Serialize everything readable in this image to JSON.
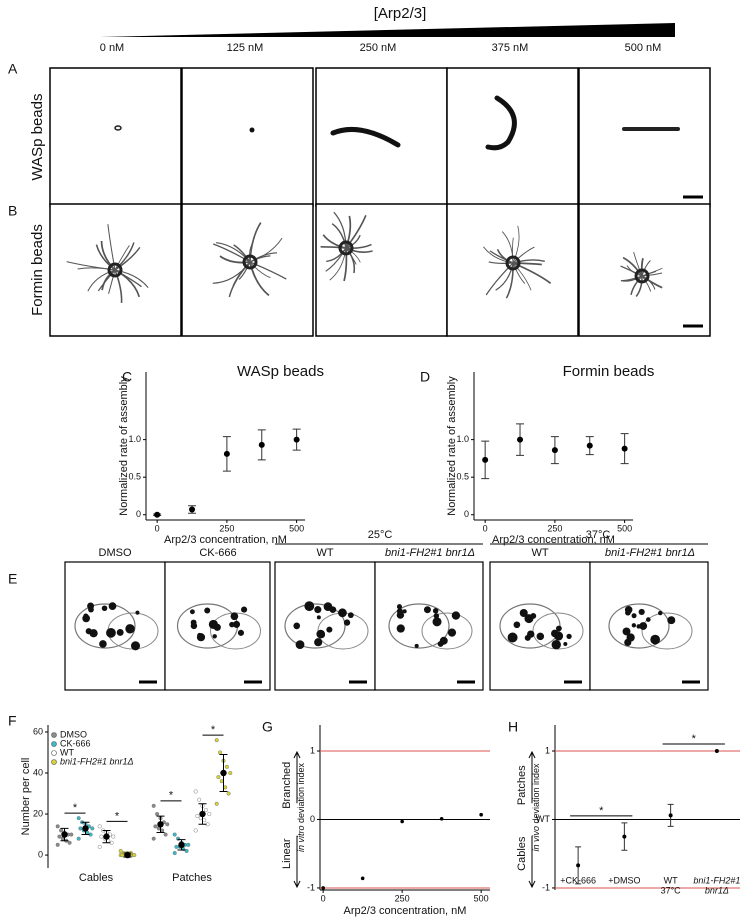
{
  "header": {
    "title": "[Arp2/3]",
    "concentrations": [
      "0 nM",
      "125 nM",
      "250 nM",
      "375 nM",
      "500 nM"
    ]
  },
  "panel_labels": [
    "A",
    "B",
    "C",
    "D",
    "E",
    "F",
    "G",
    "H"
  ],
  "row_labels": [
    "WASp beads",
    "Formin beads"
  ],
  "panel_e": {
    "groups": [
      "25°C",
      "37°C"
    ],
    "conditions": [
      "DMSO",
      "CK-666",
      "WT",
      "bni1-FH2#1  bnr1Δ",
      "WT",
      "bni1-FH2#1  bnr1Δ"
    ]
  },
  "chart_data": [
    {
      "type": "errorbar",
      "title": "WASp beads",
      "x": [
        0,
        125,
        250,
        375,
        500
      ],
      "values": [
        0,
        0.07,
        0.81,
        0.93,
        1
      ],
      "errors": [
        0.01,
        0.05,
        0.23,
        0.2,
        0.14
      ],
      "xlim": [
        -40,
        530
      ],
      "ylim": [
        -0.07,
        1.9
      ],
      "xticks": [
        0,
        250,
        500
      ],
      "yticks": [
        0,
        0.5,
        {
          "value": 1,
          "label": "1.0"
        }
      ],
      "x_label": "Arp2/3 concentration, nM",
      "y_label": "Normalized rate of assembly",
      "color": "#000000"
    },
    {
      "type": "errorbar",
      "title": "Formin beads",
      "x": [
        0,
        125,
        250,
        375,
        500
      ],
      "values": [
        0.73,
        1,
        0.86,
        0.92,
        0.88
      ],
      "errors": [
        0.25,
        0.21,
        0.18,
        0.12,
        0.2
      ],
      "xlim": [
        -40,
        530
      ],
      "ylim": [
        -0.07,
        1.9
      ],
      "xticks": [
        0,
        250,
        500
      ],
      "yticks": [
        0,
        0.5,
        {
          "value": 1,
          "label": "1.0"
        }
      ],
      "x_label": "Arp2/3 concentration, nM",
      "y_label": "Normalized rate of assembly",
      "color": "#000000"
    },
    {
      "type": "swarm",
      "categories": [
        "Cables",
        "Patches"
      ],
      "ylim": [
        -6.3,
        63.4
      ],
      "yticks": [
        0,
        20,
        40,
        60
      ],
      "y_label": "Number per cell",
      "series": [
        {
          "name": "DMSO",
          "color": "#8c8c8c",
          "values": [
            10,
            15
          ],
          "errors": [
            3,
            4
          ],
          "points": [
            [
              5,
              6,
              7,
              8,
              9,
              10,
              10,
              11,
              12,
              14
            ],
            [
              8,
              10,
              12,
              13,
              14,
              15,
              16,
              18,
              20,
              24
            ]
          ]
        },
        {
          "name": "CK-666",
          "color": "#3fb8c6",
          "values": [
            13,
            5
          ],
          "errors": [
            3,
            2.5
          ],
          "points": [
            [
              8,
              10,
              11,
              12,
              13,
              13,
              14,
              15,
              16,
              18
            ],
            [
              1,
              2,
              3,
              4,
              4,
              5,
              5,
              6,
              8,
              10
            ]
          ]
        },
        {
          "name": "WT",
          "color": "#ffffff",
          "values": [
            9,
            20
          ],
          "errors": [
            3,
            5
          ],
          "points": [
            [
              4,
              6,
              7,
              8,
              9,
              9,
              10,
              11,
              12,
              14
            ],
            [
              12,
              15,
              17,
              18,
              19,
              20,
              22,
              24,
              27,
              31
            ]
          ]
        },
        {
          "name": "bni1-FH2#1 bnr1Δ",
          "color": "#d6d23a",
          "style": "italic",
          "values": [
            0,
            40
          ],
          "errors": [
            1,
            9
          ],
          "points": [
            [
              0,
              0,
              0,
              0,
              0,
              0,
              1,
              1,
              1,
              2
            ],
            [
              25,
              30,
              33,
              36,
              38,
              40,
              43,
              46,
              50,
              56
            ]
          ]
        }
      ],
      "annotations": [
        {
          "text": "*",
          "category": 0,
          "pair": [
            0,
            1
          ]
        },
        {
          "text": "*",
          "category": 0,
          "pair": [
            2,
            3
          ]
        },
        {
          "text": "*",
          "category": 1,
          "pair": [
            0,
            1
          ]
        },
        {
          "text": "*",
          "category": 1,
          "pair": [
            2,
            3
          ]
        }
      ]
    },
    {
      "type": "scatter",
      "x": [
        0,
        125,
        250,
        375,
        500
      ],
      "values": [
        -1,
        -0.86,
        -0.03,
        0.01,
        0.07
      ],
      "xlim": [
        -10,
        528
      ],
      "ylim": [
        -1.03,
        1.38
      ],
      "xticks": [
        0,
        250,
        500
      ],
      "yticks": [
        1,
        0,
        -1
      ],
      "grid_colors": [
        "#d9534f",
        "#000000",
        "#d9534f"
      ],
      "x_label": "Arp2/3 concentration, nM",
      "y_label_italic": "in vitro",
      "y_label": "deviation index",
      "direction_labels": [
        "Branched",
        "Linear"
      ],
      "color": "#000000"
    },
    {
      "type": "category_errorbar",
      "categories": [
        "+CK-666",
        "+DMSO",
        [
          "WT",
          "37°C"
        ],
        [
          "bni1-FH2#1",
          "bnr1Δ"
        ]
      ],
      "label_colors": [
        "#000000",
        "#000000",
        "#000000",
        "#777777"
      ],
      "values": [
        -0.67,
        -0.25,
        0.06,
        1
      ],
      "errors": [
        0.27,
        0.2,
        0.16,
        null
      ],
      "ylim": [
        -1.03,
        1.38
      ],
      "yticks": [
        1,
        {
          "value": 0,
          "label": "WT"
        },
        -1
      ],
      "grid_colors": [
        "#d9534f",
        "#000000",
        "#d9534f"
      ],
      "y_label_italic": "in vivo",
      "y_label": "deviation index",
      "direction_labels": [
        "Patches",
        "Cables"
      ],
      "color": "#000000",
      "annotations": [
        {
          "text": "*",
          "pair": [
            0,
            1
          ]
        },
        {
          "text": "*",
          "pair": [
            2,
            3
          ]
        }
      ]
    }
  ]
}
